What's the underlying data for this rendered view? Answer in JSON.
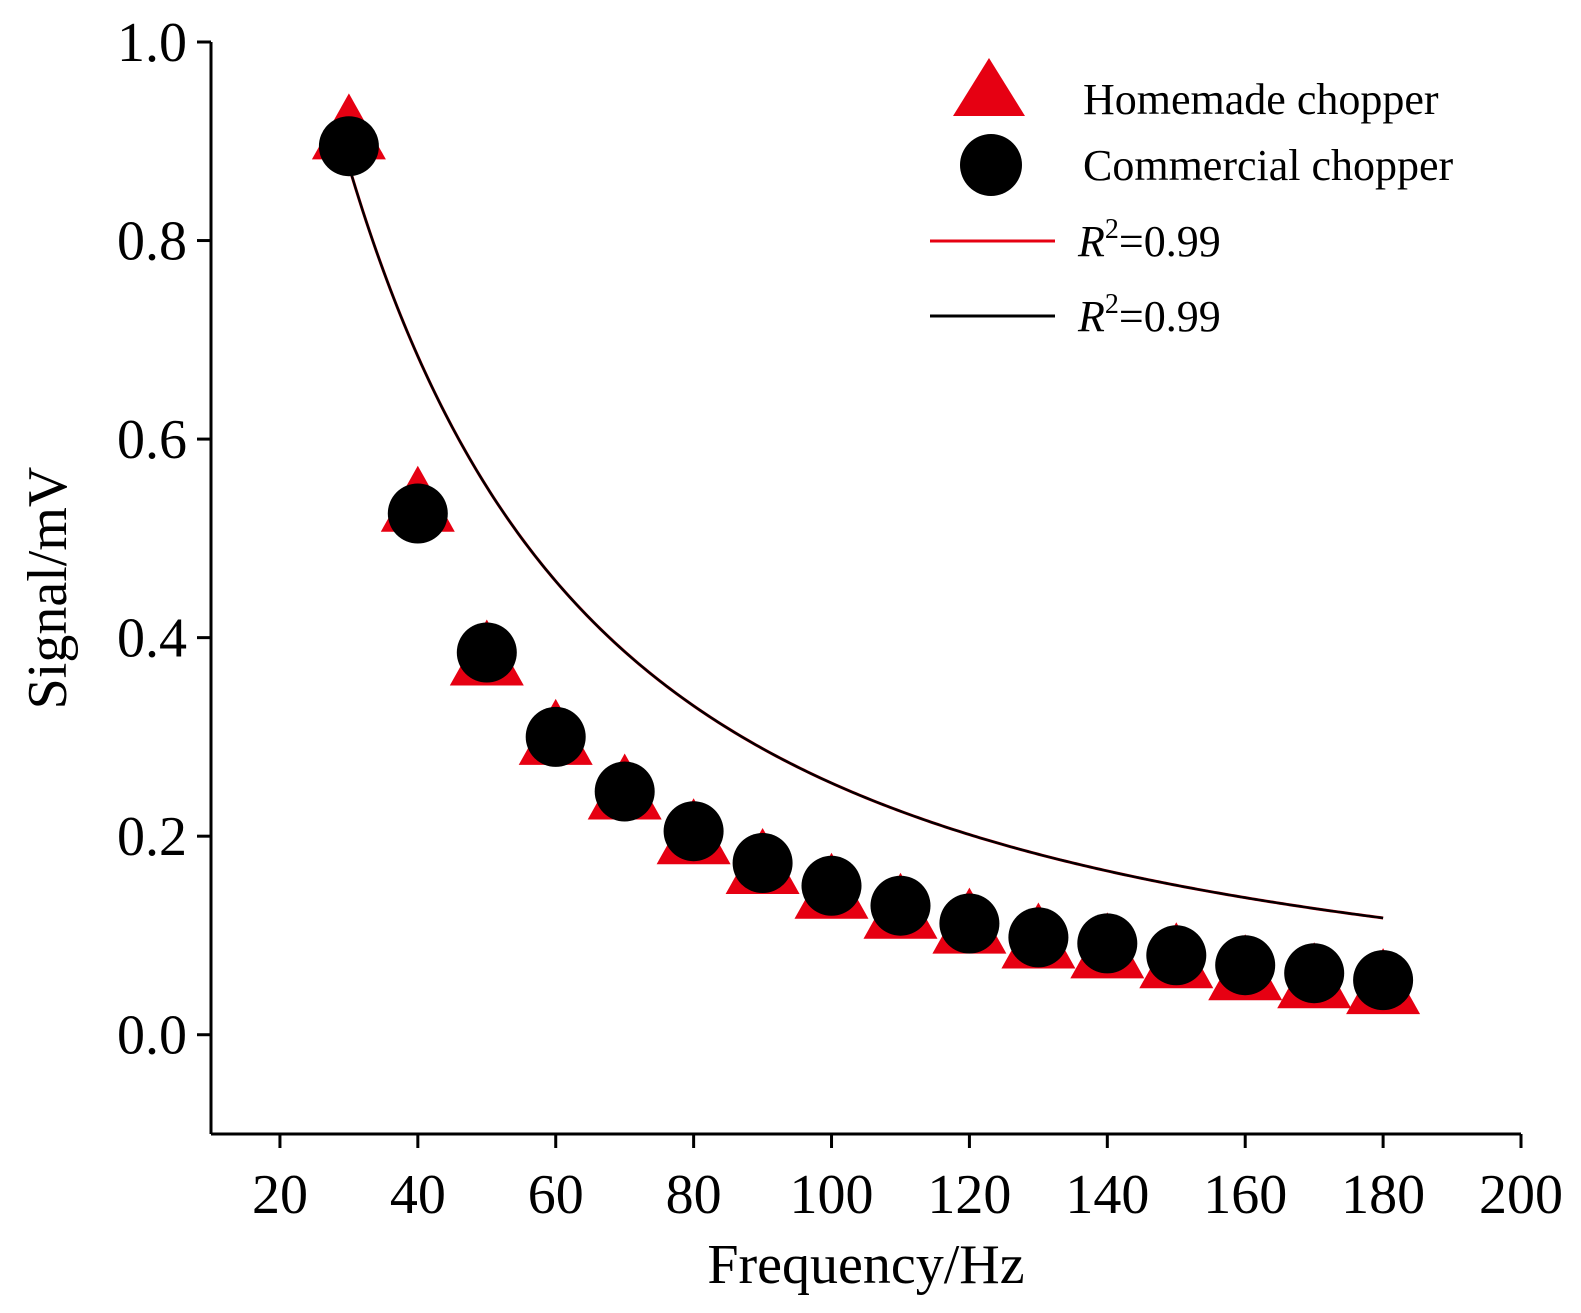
{
  "chart_data": {
    "type": "scatter",
    "xlabel": "Frequency/Hz",
    "ylabel": "Signal/mV",
    "xlim": [
      10,
      200
    ],
    "ylim": [
      -0.1,
      1.0
    ],
    "x_ticks": [
      20,
      40,
      60,
      80,
      100,
      120,
      140,
      160,
      180,
      200
    ],
    "x_tick_labels": [
      "20",
      "40",
      "60",
      "80",
      "100",
      "120",
      "140",
      "160",
      "180",
      "200"
    ],
    "y_ticks": [
      0.0,
      0.2,
      0.4,
      0.6,
      0.8,
      1.0
    ],
    "y_tick_labels": [
      "0.0",
      "0.2",
      "0.4",
      "0.6",
      "0.8",
      "1.0"
    ],
    "grid": false,
    "legend_position": "top-right",
    "series": [
      {
        "name": "Homemade chopper",
        "marker": "triangle",
        "color": "#e60012",
        "x": [
          30,
          40,
          50,
          60,
          70,
          80,
          90,
          100,
          110,
          120,
          130,
          140,
          150,
          160,
          170,
          180
        ],
        "y": [
          0.915,
          0.54,
          0.385,
          0.305,
          0.25,
          0.205,
          0.175,
          0.15,
          0.13,
          0.115,
          0.1,
          0.09,
          0.08,
          0.068,
          0.06,
          0.054
        ]
      },
      {
        "name": "Commercial chopper",
        "marker": "circle",
        "color": "#000000",
        "x": [
          30,
          40,
          50,
          60,
          70,
          80,
          90,
          100,
          110,
          120,
          130,
          140,
          150,
          160,
          170,
          180
        ],
        "y": [
          0.895,
          0.525,
          0.385,
          0.3,
          0.245,
          0.205,
          0.173,
          0.15,
          0.13,
          0.112,
          0.098,
          0.092,
          0.08,
          0.07,
          0.062,
          0.055
        ]
      }
    ],
    "fits": [
      {
        "label_var": "R",
        "label_sup": "2",
        "label_rest": "=0.99",
        "color": "#e60012",
        "x_range": [
          30,
          180
        ],
        "a": 0.875,
        "b": 0.0167,
        "p": 1.6
      },
      {
        "label_var": "R",
        "label_sup": "2",
        "label_rest": "=0.99",
        "color": "#000000",
        "x_range": [
          30,
          180
        ],
        "a": 0.875,
        "b": 0.0167,
        "p": 1.6
      }
    ]
  }
}
